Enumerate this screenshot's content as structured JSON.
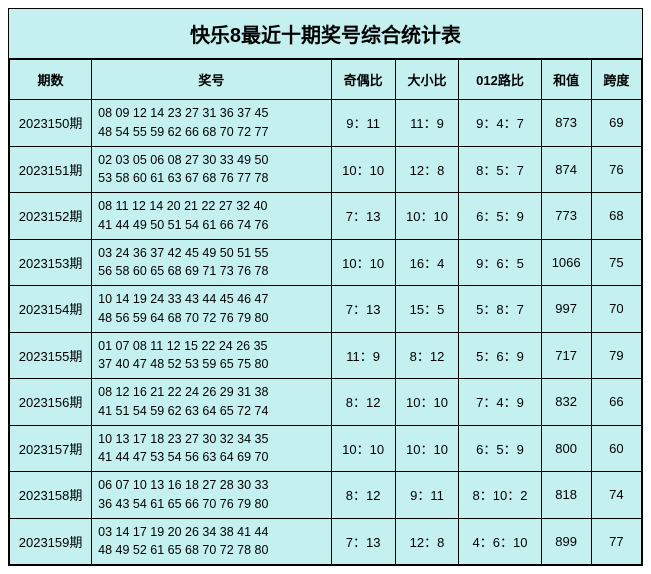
{
  "title": "快乐8最近十期奖号综合统计表",
  "headers": {
    "period": "期数",
    "numbers": "奖号",
    "odd_even": "奇偶比",
    "big_small": "大小比",
    "route": "012路比",
    "sum": "和值",
    "span": "跨度"
  },
  "rows": [
    {
      "period": "2023150期",
      "line1": "08 09 12 14 23 27 31 36 37 45",
      "line2": "48 54 55 59 62 66 68 70 72 77",
      "odd_even": "9：11",
      "big_small": "11：9",
      "route": "9：4：7",
      "sum": "873",
      "span": "69"
    },
    {
      "period": "2023151期",
      "line1": "02 03 05 06 08 27 30 33 49 50",
      "line2": "53 58 60 61 63 67 68 76 77 78",
      "odd_even": "10：10",
      "big_small": "12：8",
      "route": "8：5：7",
      "sum": "874",
      "span": "76"
    },
    {
      "period": "2023152期",
      "line1": "08 11 12 14 20 21 22 27 32 40",
      "line2": "41 44 49 50 51 54 61 66 74 76",
      "odd_even": "7：13",
      "big_small": "10：10",
      "route": "6：5：9",
      "sum": "773",
      "span": "68"
    },
    {
      "period": "2023153期",
      "line1": "03 24 36 37 42 45 49 50 51 55",
      "line2": "56 58 60 65 68 69 71 73 76 78",
      "odd_even": "10：10",
      "big_small": "16：4",
      "route": "9：6：5",
      "sum": "1066",
      "span": "75"
    },
    {
      "period": "2023154期",
      "line1": "10 14 19 24 33 43 44 45 46 47",
      "line2": "48 56 59 64 68 70 72 76 79 80",
      "odd_even": "7：13",
      "big_small": "15：5",
      "route": "5：8：7",
      "sum": "997",
      "span": "70"
    },
    {
      "period": "2023155期",
      "line1": "01 07 08 11 12 15 22 24 26 35",
      "line2": "37 40 47 48 52 53 59 65 75 80",
      "odd_even": "11：9",
      "big_small": "8：12",
      "route": "5：6：9",
      "sum": "717",
      "span": "79"
    },
    {
      "period": "2023156期",
      "line1": "08 12 16 21 22 24 26 29 31 38",
      "line2": "41 51 54 59 62 63 64 65 72 74",
      "odd_even": "8：12",
      "big_small": "10：10",
      "route": "7：4：9",
      "sum": "832",
      "span": "66"
    },
    {
      "period": "2023157期",
      "line1": "10 13 17 18 23 27 30 32 34 35",
      "line2": "41 44 47 53 54 56 63 64 69 70",
      "odd_even": "10：10",
      "big_small": "10：10",
      "route": "6：5：9",
      "sum": "800",
      "span": "60"
    },
    {
      "period": "2023158期",
      "line1": "06 07 10 13 16 18 27 28 30 33",
      "line2": "36 43 54 61 65 66 70 76 79 80",
      "odd_even": "8：12",
      "big_small": "9：11",
      "route": "8：10：2",
      "sum": "818",
      "span": "74"
    },
    {
      "period": "2023159期",
      "line1": "03 14 17 19 20 26 34 38 41 44",
      "line2": "48 49 52 61 65 68 70 72 78 80",
      "odd_even": "7：13",
      "big_small": "12：8",
      "route": "4：6：10",
      "sum": "899",
      "span": "77"
    }
  ],
  "colors": {
    "background": "#c5f0f0",
    "border": "#000000",
    "text": "#000000"
  }
}
